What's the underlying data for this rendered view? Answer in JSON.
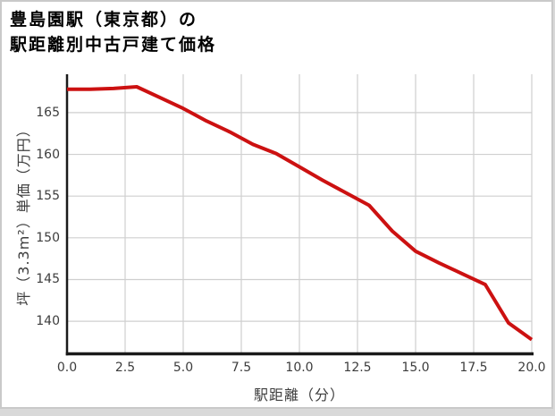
{
  "title": {
    "line1": "豊島園駅（東京都）の",
    "line2": "駅距離別中古戸建て価格"
  },
  "chart_data": {
    "type": "line",
    "title": "豊島園駅（東京都）の駅距離別中古戸建て価格",
    "xlabel": "駅距離（分）",
    "ylabel": "坪（3.3m²）単価（万円）",
    "x": [
      0,
      1,
      2,
      3,
      4,
      5,
      6,
      7,
      8,
      9,
      10,
      11,
      12,
      13,
      14,
      15,
      16,
      17,
      18,
      19,
      20
    ],
    "y": [
      167.8,
      167.8,
      167.9,
      168.1,
      166.8,
      165.5,
      164.0,
      162.7,
      161.2,
      160.1,
      158.5,
      156.9,
      155.4,
      153.9,
      150.8,
      148.4,
      147.0,
      145.7,
      144.4,
      139.8,
      137.8
    ],
    "xlim": [
      0,
      20
    ],
    "ylim": [
      136.1,
      169.6
    ],
    "xticks": {
      "values": [
        0,
        2.5,
        5,
        7.5,
        10,
        12.5,
        15,
        17.5,
        20
      ],
      "labels": [
        "0.0",
        "2.5",
        "5.0",
        "7.5",
        "10.0",
        "12.5",
        "15.0",
        "17.5",
        "20.0"
      ]
    },
    "yticks": {
      "values": [
        140,
        145,
        150,
        155,
        160,
        165
      ],
      "labels": [
        "140",
        "145",
        "150",
        "155",
        "160",
        "165"
      ]
    },
    "grid": true,
    "legend": false,
    "colors": {
      "line": "#cc1111",
      "grid": "#cfcfcf",
      "spine": "#1a1a1a",
      "card_border": "#c9c9c9",
      "tick_text": "#3d3d3d",
      "title_text": "#000000"
    }
  }
}
